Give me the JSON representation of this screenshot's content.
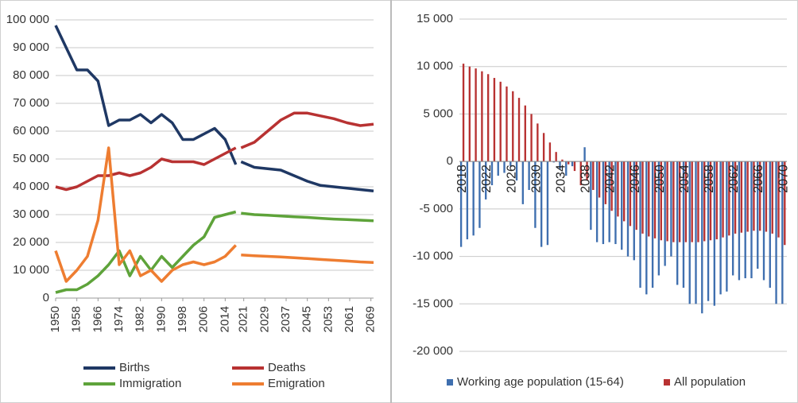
{
  "chart_data": [
    {
      "type": "line",
      "x": [
        1950,
        1954,
        1958,
        1962,
        1966,
        1970,
        1974,
        1978,
        1982,
        1986,
        1990,
        1994,
        1998,
        2002,
        2006,
        2010,
        2014,
        2018,
        2019,
        2020,
        2025,
        2030,
        2035,
        2040,
        2045,
        2050,
        2055,
        2060,
        2065,
        2070
      ],
      "series": [
        {
          "name": "Births",
          "color": "#1f3864",
          "values": [
            98000,
            90000,
            82000,
            82000,
            78000,
            62000,
            64000,
            64000,
            66000,
            63000,
            66000,
            63000,
            57000,
            57000,
            59000,
            61000,
            57000,
            48000,
            null,
            49000,
            47000,
            46500,
            46000,
            44000,
            42000,
            40500,
            40000,
            39500,
            39000,
            38500
          ]
        },
        {
          "name": "Deaths",
          "color": "#b83232",
          "values": [
            40000,
            39000,
            40000,
            42000,
            44000,
            44000,
            45000,
            44000,
            45000,
            47000,
            50000,
            49000,
            49000,
            49000,
            48000,
            50000,
            52000,
            54000,
            null,
            54000,
            56000,
            60000,
            64000,
            66500,
            66500,
            65500,
            64500,
            63000,
            62000,
            62500
          ]
        },
        {
          "name": "Immigration",
          "color": "#5ea33a",
          "values": [
            2000,
            3000,
            3000,
            5000,
            8000,
            12000,
            17000,
            8000,
            15000,
            10000,
            15000,
            11000,
            15000,
            19000,
            22000,
            29000,
            30000,
            31000,
            null,
            30500,
            30000,
            29800,
            29500,
            29200,
            29000,
            28700,
            28400,
            28200,
            28000,
            27800
          ]
        },
        {
          "name": "Emigration",
          "color": "#ee7d31",
          "values": [
            17000,
            6000,
            10000,
            15000,
            28000,
            54000,
            12000,
            17000,
            8000,
            10000,
            6000,
            10000,
            12000,
            13000,
            12000,
            13000,
            15000,
            19000,
            null,
            15500,
            15200,
            15000,
            14800,
            14500,
            14200,
            13900,
            13600,
            13300,
            13000,
            12800
          ]
        }
      ],
      "xlim": [
        1950,
        2070
      ],
      "xticks": [
        1950,
        1958,
        1966,
        1974,
        1982,
        1990,
        1998,
        2006,
        2014,
        2021,
        2029,
        2037,
        2045,
        2053,
        2061,
        2069
      ],
      "ylim": [
        0,
        100000
      ],
      "yticks": [
        0,
        {
          "value": 10000,
          "label": "10 000"
        },
        {
          "value": 20000,
          "label": "20 000"
        },
        {
          "value": 30000,
          "label": "30 000"
        },
        {
          "value": 40000,
          "label": "40 000"
        },
        {
          "value": 50000,
          "label": "50 000"
        },
        {
          "value": 60000,
          "label": "60 000"
        },
        {
          "value": 70000,
          "label": "70 000"
        },
        {
          "value": 80000,
          "label": "80 000"
        },
        {
          "value": 90000,
          "label": "90 000"
        },
        {
          "value": 100000,
          "label": "100 000"
        }
      ],
      "grid": true
    },
    {
      "type": "bar",
      "categories": [
        "2018",
        null,
        null,
        null,
        "2022",
        null,
        null,
        null,
        "2026",
        null,
        null,
        null,
        "2030",
        null,
        null,
        null,
        "2034",
        null,
        null,
        null,
        "2038",
        null,
        null,
        null,
        "2042",
        null,
        null,
        null,
        "2046",
        null,
        null,
        null,
        "2050",
        null,
        null,
        null,
        "2054",
        null,
        null,
        null,
        "2058",
        null,
        null,
        null,
        "2062",
        null,
        null,
        null,
        "2066",
        null,
        null,
        null,
        "2070"
      ],
      "series": [
        {
          "name": "Working age population (15-64)",
          "color": "#3f6faf",
          "values": [
            -9000,
            -8200,
            -7800,
            -7000,
            -4000,
            -2500,
            -1500,
            -1200,
            -500,
            -2000,
            -4500,
            -3000,
            -7000,
            -9000,
            -8800,
            -100,
            -800,
            -1500,
            -500,
            0,
            1500,
            -7200,
            -8500,
            -8700,
            -8500,
            -8700,
            -9300,
            -10000,
            -10400,
            -13300,
            -14000,
            -13300,
            -12000,
            -11000,
            -10000,
            -13000,
            -13300,
            -15000,
            -15000,
            -16000,
            -14700,
            -15200,
            -14000,
            -13700,
            -12000,
            -12500,
            -12300,
            -12300,
            -11300,
            -12500,
            -13300,
            -15000,
            -15000
          ]
        },
        {
          "name": "All population",
          "color": "#b83232",
          "values": [
            10300,
            10000,
            9800,
            9500,
            9200,
            8800,
            8400,
            7900,
            7400,
            6700,
            5900,
            5000,
            4000,
            3000,
            2000,
            1000,
            200,
            -300,
            -1000,
            -2500,
            -2000,
            -3000,
            -3800,
            -4500,
            -5200,
            -5800,
            -6300,
            -6800,
            -7200,
            -7600,
            -7900,
            -8100,
            -8300,
            -8400,
            -8500,
            -8500,
            -8500,
            -8500,
            -8500,
            -8400,
            -8300,
            -8200,
            -8000,
            -7800,
            -7600,
            -7500,
            -7400,
            -7300,
            -7300,
            -7400,
            -7600,
            -8000,
            -8800
          ]
        }
      ],
      "ylim": [
        -20000,
        15000
      ],
      "yticks": [
        {
          "value": -20000,
          "label": "-20 000"
        },
        {
          "value": -15000,
          "label": "-15 000"
        },
        {
          "value": -10000,
          "label": "-10 000"
        },
        {
          "value": -5000,
          "label": "-5 000"
        },
        0,
        {
          "value": 5000,
          "label": "5 000"
        },
        {
          "value": 10000,
          "label": "10 000"
        },
        {
          "value": 15000,
          "label": "15 000"
        }
      ],
      "grid": true
    }
  ]
}
